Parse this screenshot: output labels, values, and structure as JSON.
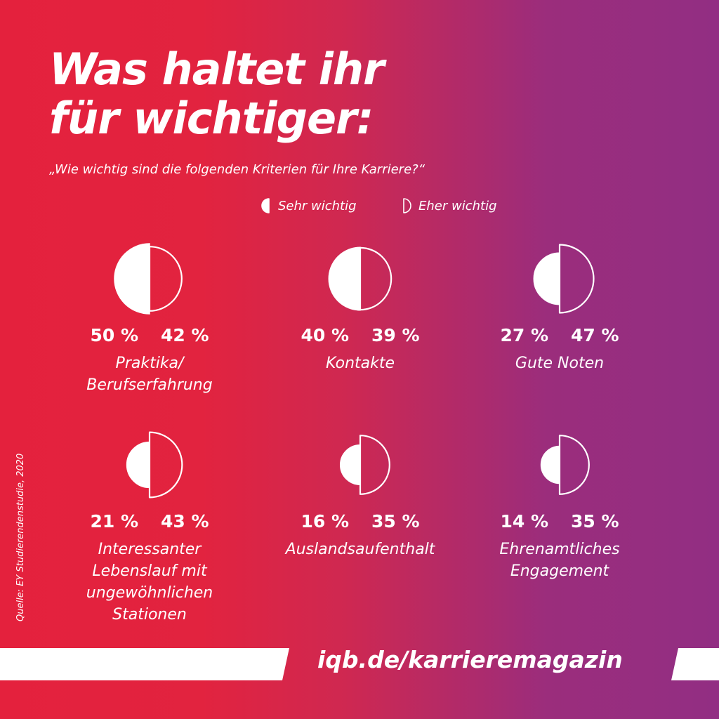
{
  "title_line1": "Was haltet ihr",
  "title_line2": "für wichtiger:",
  "subtitle": "„Wie wichtig sind die folgenden Kriterien für Ihre Karriere?“",
  "legend": {
    "sehr": "Sehr wichtig",
    "eher": "Eher wichtig"
  },
  "chart_data": {
    "type": "half-circle proportional pairs",
    "title": "Was haltet ihr für wichtiger:",
    "subtitle": "„Wie wichtig sind die folgenden Kriterien für Ihre Karriere?“",
    "unit": "%",
    "series": [
      {
        "name": "Sehr wichtig",
        "style": "filled left half"
      },
      {
        "name": "Eher wichtig",
        "style": "outlined right half"
      }
    ],
    "categories": [
      "Praktika/ Berufserfahrung",
      "Kontakte",
      "Gute Noten",
      "Interessanter Lebenslauf mit ungewöhnlichen Stationen",
      "Auslandsaufenthalt",
      "Ehrenamtliches Engagement"
    ],
    "items": [
      {
        "label_lines": [
          "Praktika/",
          "Berufserfahrung"
        ],
        "sehr": 50,
        "eher": 42,
        "sehr_text": "50 %",
        "eher_text": "42 %"
      },
      {
        "label_lines": [
          "Kontakte"
        ],
        "sehr": 40,
        "eher": 39,
        "sehr_text": "40 %",
        "eher_text": "39 %"
      },
      {
        "label_lines": [
          "Gute Noten"
        ],
        "sehr": 27,
        "eher": 47,
        "sehr_text": "27 %",
        "eher_text": "47 %"
      },
      {
        "label_lines": [
          "Interessanter",
          "Lebenslauf mit",
          "ungewöhnlichen",
          "Stationen"
        ],
        "sehr": 21,
        "eher": 43,
        "sehr_text": "21 %",
        "eher_text": "43 %"
      },
      {
        "label_lines": [
          "Auslandsaufenthalt"
        ],
        "sehr": 16,
        "eher": 35,
        "sehr_text": "16 %",
        "eher_text": "35 %"
      },
      {
        "label_lines": [
          "Ehrenamtliches",
          "Engagement"
        ],
        "sehr": 14,
        "eher": 35,
        "sehr_text": "14 %",
        "eher_text": "35 %"
      }
    ]
  },
  "source": "Quelle: EY Studierendenstudie, 2020",
  "url": "iqb.de/karrieremagazin"
}
